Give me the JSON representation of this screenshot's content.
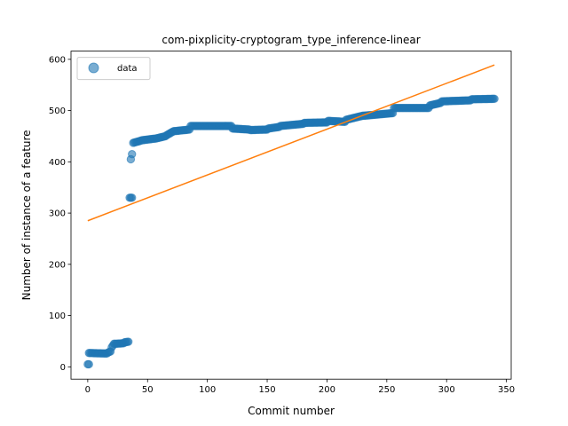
{
  "chart_data": {
    "type": "scatter",
    "title": "com-pixplicity-cryptogram_type_inference-linear",
    "xlabel": "Commit number",
    "ylabel": "Number of instance of a feature",
    "xlim": [
      -14,
      354
    ],
    "ylim": [
      -24,
      616
    ],
    "xticks": [
      0,
      50,
      100,
      150,
      200,
      250,
      300,
      350
    ],
    "yticks": [
      0,
      100,
      200,
      300,
      400,
      500,
      600
    ],
    "grid": false,
    "legend": {
      "placement": "top-left",
      "entries": [
        "data"
      ]
    },
    "colors": {
      "data": "#1f77b4",
      "fit": "#ff7f0e"
    },
    "series": [
      {
        "name": "data",
        "kind": "scatter",
        "segments": [
          [
            0,
            5,
            1,
            5
          ],
          [
            1,
            27,
            16,
            26
          ],
          [
            17,
            28,
            19,
            30
          ],
          [
            20,
            38,
            22,
            45
          ],
          [
            23,
            45,
            30,
            46
          ],
          [
            31,
            48,
            34,
            49
          ],
          [
            35,
            330,
            37,
            330
          ],
          [
            36,
            405,
            37,
            415
          ],
          [
            38,
            437,
            44,
            441
          ],
          [
            45,
            442,
            55,
            445
          ],
          [
            56,
            445,
            65,
            450
          ],
          [
            66,
            452,
            72,
            460
          ],
          [
            73,
            460,
            85,
            463
          ],
          [
            86,
            470,
            120,
            470
          ],
          [
            121,
            465,
            135,
            463
          ],
          [
            136,
            462,
            150,
            463
          ],
          [
            151,
            465,
            160,
            468
          ],
          [
            161,
            470,
            180,
            474
          ],
          [
            181,
            476,
            200,
            477
          ],
          [
            201,
            480,
            215,
            478
          ],
          [
            216,
            482,
            230,
            490
          ],
          [
            231,
            490,
            255,
            495
          ],
          [
            256,
            505,
            285,
            505
          ],
          [
            286,
            510,
            295,
            515
          ],
          [
            296,
            518,
            320,
            520
          ],
          [
            321,
            522,
            340,
            523
          ]
        ]
      },
      {
        "name": "",
        "kind": "line",
        "x": [
          0,
          340
        ],
        "y": [
          285,
          589
        ]
      }
    ]
  }
}
